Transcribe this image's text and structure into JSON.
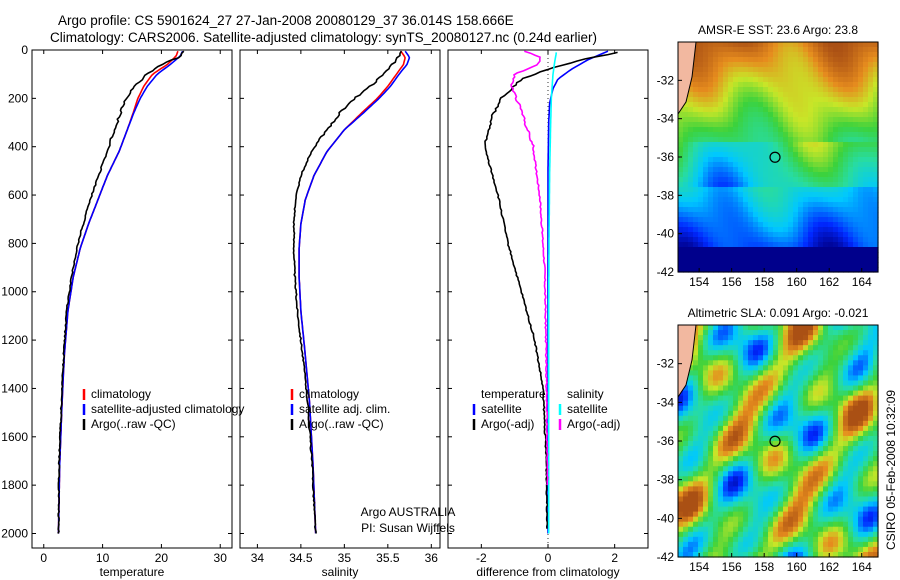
{
  "header": {
    "line1": "Argo profile: CS 5901624_27 27-Jan-2008 20080129_37 36.014S 158.666E",
    "line2": "Climatology: CARS2006. Satellite-adjusted climatology: synTS_20080127.nc (0.24d earlier)"
  },
  "side_label": "CSIRO 05-Feb-2008 10:32:09",
  "colors": {
    "climatology": "#ff0000",
    "satellite": "#0000ff",
    "argo": "#000000",
    "argo_adj": "#ff00ff",
    "sat_sal": "#00ffff"
  },
  "chart_data": [
    {
      "type": "line",
      "xlabel": "temperature",
      "ylabel": "",
      "xlim": [
        -2,
        32
      ],
      "ylim": [
        2060,
        0
      ],
      "xticks": [
        0,
        10,
        20,
        30
      ],
      "yticks": [
        0,
        200,
        400,
        600,
        800,
        1000,
        1200,
        1400,
        1600,
        1800,
        2000
      ],
      "legend": [
        "climatology",
        "satellite-adjusted climatology",
        "Argo(..raw -QC)"
      ],
      "series": [
        {
          "name": "climatology",
          "color": "#ff0000",
          "x": [
            22.8,
            22.5,
            21.0,
            18.5,
            17.0,
            16.0,
            15.2,
            14.2,
            12.8,
            10.8,
            9.2,
            7.6,
            6.2,
            5.0,
            4.1,
            3.5,
            3.1,
            2.7,
            2.5
          ],
          "y": [
            5,
            25,
            60,
            100,
            150,
            200,
            260,
            330,
            420,
            520,
            620,
            720,
            820,
            940,
            1080,
            1260,
            1460,
            1720,
            2000
          ]
        },
        {
          "name": "satellite-adjusted climatology",
          "color": "#0000ff",
          "x": [
            23.6,
            23.2,
            21.5,
            19.3,
            17.6,
            16.4,
            15.3,
            14.2,
            12.8,
            10.8,
            9.2,
            7.6,
            6.2,
            5.0,
            4.1,
            3.5,
            3.1,
            2.7,
            2.5
          ],
          "y": [
            5,
            25,
            60,
            100,
            150,
            200,
            260,
            330,
            420,
            520,
            620,
            720,
            820,
            940,
            1080,
            1260,
            1460,
            1720,
            2000
          ]
        },
        {
          "name": "Argo(..raw -QC)",
          "color": "#000000",
          "x": [
            23.8,
            23.0,
            20.0,
            17.5,
            15.5,
            14.0,
            13.0,
            12.0,
            10.8,
            9.3,
            7.9,
            6.7,
            5.6,
            4.7,
            3.9,
            3.4,
            3.0,
            2.6,
            2.5
          ],
          "y": [
            5,
            30,
            60,
            100,
            150,
            200,
            260,
            330,
            420,
            520,
            620,
            720,
            820,
            940,
            1080,
            1260,
            1460,
            1720,
            2000
          ]
        }
      ]
    },
    {
      "type": "line",
      "xlabel": "salinity",
      "ylabel": "",
      "xlim": [
        33.8,
        36.1
      ],
      "ylim": [
        2060,
        0
      ],
      "xticks": [
        34,
        34.5,
        35,
        35.5,
        36
      ],
      "yticks": [],
      "legend": [
        "climatology",
        "satellite adj. clim.",
        "Argo(..raw -QC)"
      ],
      "annotation": [
        "Argo AUSTRALIA",
        "PI: Susan Wijffels"
      ],
      "series": [
        {
          "name": "climatology",
          "color": "#ff0000",
          "x": [
            35.65,
            35.7,
            35.68,
            35.6,
            35.5,
            35.38,
            35.2,
            35.0,
            34.8,
            34.65,
            34.55,
            34.5,
            34.48,
            34.48,
            34.5,
            34.55,
            34.6,
            34.64,
            34.67
          ],
          "y": [
            5,
            30,
            60,
            100,
            150,
            200,
            260,
            330,
            420,
            520,
            620,
            720,
            820,
            940,
            1080,
            1260,
            1460,
            1720,
            2000
          ]
        },
        {
          "name": "satellite adj. clim.",
          "color": "#0000ff",
          "x": [
            35.7,
            35.75,
            35.72,
            35.63,
            35.53,
            35.4,
            35.22,
            35.0,
            34.8,
            34.65,
            34.55,
            34.5,
            34.48,
            34.48,
            34.5,
            34.55,
            34.6,
            34.64,
            34.67
          ],
          "y": [
            5,
            30,
            60,
            100,
            150,
            200,
            260,
            330,
            420,
            520,
            620,
            720,
            820,
            940,
            1080,
            1260,
            1460,
            1720,
            2000
          ]
        },
        {
          "name": "Argo(..raw -QC)",
          "color": "#000000",
          "x": [
            35.65,
            35.62,
            35.55,
            35.45,
            35.3,
            35.12,
            34.95,
            34.8,
            34.62,
            34.5,
            34.44,
            34.42,
            34.42,
            34.43,
            34.46,
            34.52,
            34.58,
            34.63,
            34.67
          ],
          "y": [
            5,
            30,
            60,
            100,
            150,
            200,
            260,
            330,
            420,
            520,
            620,
            720,
            820,
            940,
            1080,
            1260,
            1460,
            1720,
            2000
          ]
        }
      ]
    },
    {
      "type": "line",
      "xlabel": "difference from climatology",
      "ylabel": "",
      "xlim": [
        -3,
        3
      ],
      "ylim": [
        2060,
        0
      ],
      "xticks": [
        -2,
        0,
        2
      ],
      "yticks": [],
      "legend_left": [
        "temperature",
        "satellite",
        "Argo(-adj)"
      ],
      "legend_right": [
        "salinity",
        "satellite",
        "Argo(-adj)"
      ],
      "series": [
        {
          "name": "temperature satellite",
          "color": "#0000ff",
          "x": [
            1.8,
            1.2,
            0.7,
            0.3,
            0.15,
            0.05,
            0.02,
            0,
            0,
            0
          ],
          "y": [
            5,
            40,
            80,
            120,
            160,
            220,
            300,
            500,
            1000,
            2000
          ]
        },
        {
          "name": "temperature Argo(-adj)",
          "color": "#000000",
          "x": [
            2.1,
            1.0,
            0.0,
            -0.8,
            -1.4,
            -1.7,
            -1.9,
            -1.5,
            -1.2,
            -0.8,
            -0.4,
            -0.15,
            -0.05,
            -0.02
          ],
          "y": [
            10,
            40,
            80,
            120,
            200,
            280,
            400,
            600,
            800,
            1000,
            1200,
            1400,
            1700,
            1980
          ]
        },
        {
          "name": "salinity satellite",
          "color": "#00ffff",
          "x": [
            0.25,
            0.2,
            0.15,
            0.1,
            0.08,
            0.05,
            0.03,
            0.02,
            0.02,
            0.02,
            0.02
          ],
          "y": [
            10,
            50,
            100,
            200,
            300,
            500,
            800,
            1100,
            1400,
            1700,
            2000
          ]
        },
        {
          "name": "salinity Argo(-adj)",
          "color": "#ff00ff",
          "x": [
            -0.7,
            -0.2,
            -0.3,
            -1.0,
            -1.1,
            -0.8,
            -0.45,
            -0.25,
            -0.1,
            -0.05,
            -0.02
          ],
          "y": [
            5,
            30,
            60,
            100,
            150,
            250,
            400,
            600,
            900,
            1300,
            1800
          ]
        }
      ]
    },
    {
      "type": "heatmap",
      "title": "AMSR-E SST: 23.6 Argo: 23.8",
      "xlim": [
        152.7,
        165
      ],
      "ylim": [
        -42,
        -30
      ],
      "xticks": [
        154,
        156,
        158,
        160,
        162,
        164
      ],
      "yticks": [
        -32,
        -34,
        -36,
        -38,
        -40,
        -42
      ],
      "marker": {
        "lon": 158.666,
        "lat": -36.014
      }
    },
    {
      "type": "heatmap",
      "title": "Altimetric SLA: 0.091  Argo: -0.021",
      "xlim": [
        152.7,
        165
      ],
      "ylim": [
        -42,
        -30
      ],
      "xticks": [
        154,
        156,
        158,
        160,
        162,
        164
      ],
      "yticks": [
        -32,
        -34,
        -36,
        -38,
        -40,
        -42
      ],
      "marker": {
        "lon": 158.666,
        "lat": -36.014
      }
    }
  ]
}
